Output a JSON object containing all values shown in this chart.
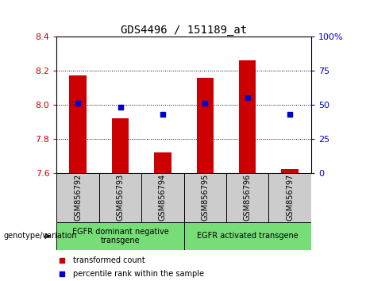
{
  "title": "GDS4496 / 151189_at",
  "samples": [
    "GSM856792",
    "GSM856793",
    "GSM856794",
    "GSM856795",
    "GSM856796",
    "GSM856797"
  ],
  "bar_values": [
    8.17,
    7.92,
    7.72,
    8.16,
    8.26,
    7.62
  ],
  "bar_base": 7.6,
  "percentile_rank": [
    51,
    48,
    43,
    51,
    55,
    43
  ],
  "ylim": [
    7.6,
    8.4
  ],
  "yticks": [
    7.6,
    7.8,
    8.0,
    8.2,
    8.4
  ],
  "y2lim": [
    0,
    100
  ],
  "y2ticks": [
    0,
    25,
    50,
    75,
    100
  ],
  "y2ticklabels": [
    "0",
    "25",
    "50",
    "75",
    "100%"
  ],
  "bar_color": "#cc0000",
  "dot_color": "#0000cc",
  "group1_label": "EGFR dominant negative\ntransgene",
  "group2_label": "EGFR activated transgene",
  "group1_indices": [
    0,
    1,
    2
  ],
  "group2_indices": [
    3,
    4,
    5
  ],
  "group_bg_color": "#77dd77",
  "sample_bg_color": "#cccccc",
  "legend_red_label": "transformed count",
  "legend_blue_label": "percentile rank within the sample",
  "xlabel_left": "genotype/variation",
  "grid_yvals": [
    7.8,
    8.0,
    8.2
  ],
  "bar_width": 0.4
}
